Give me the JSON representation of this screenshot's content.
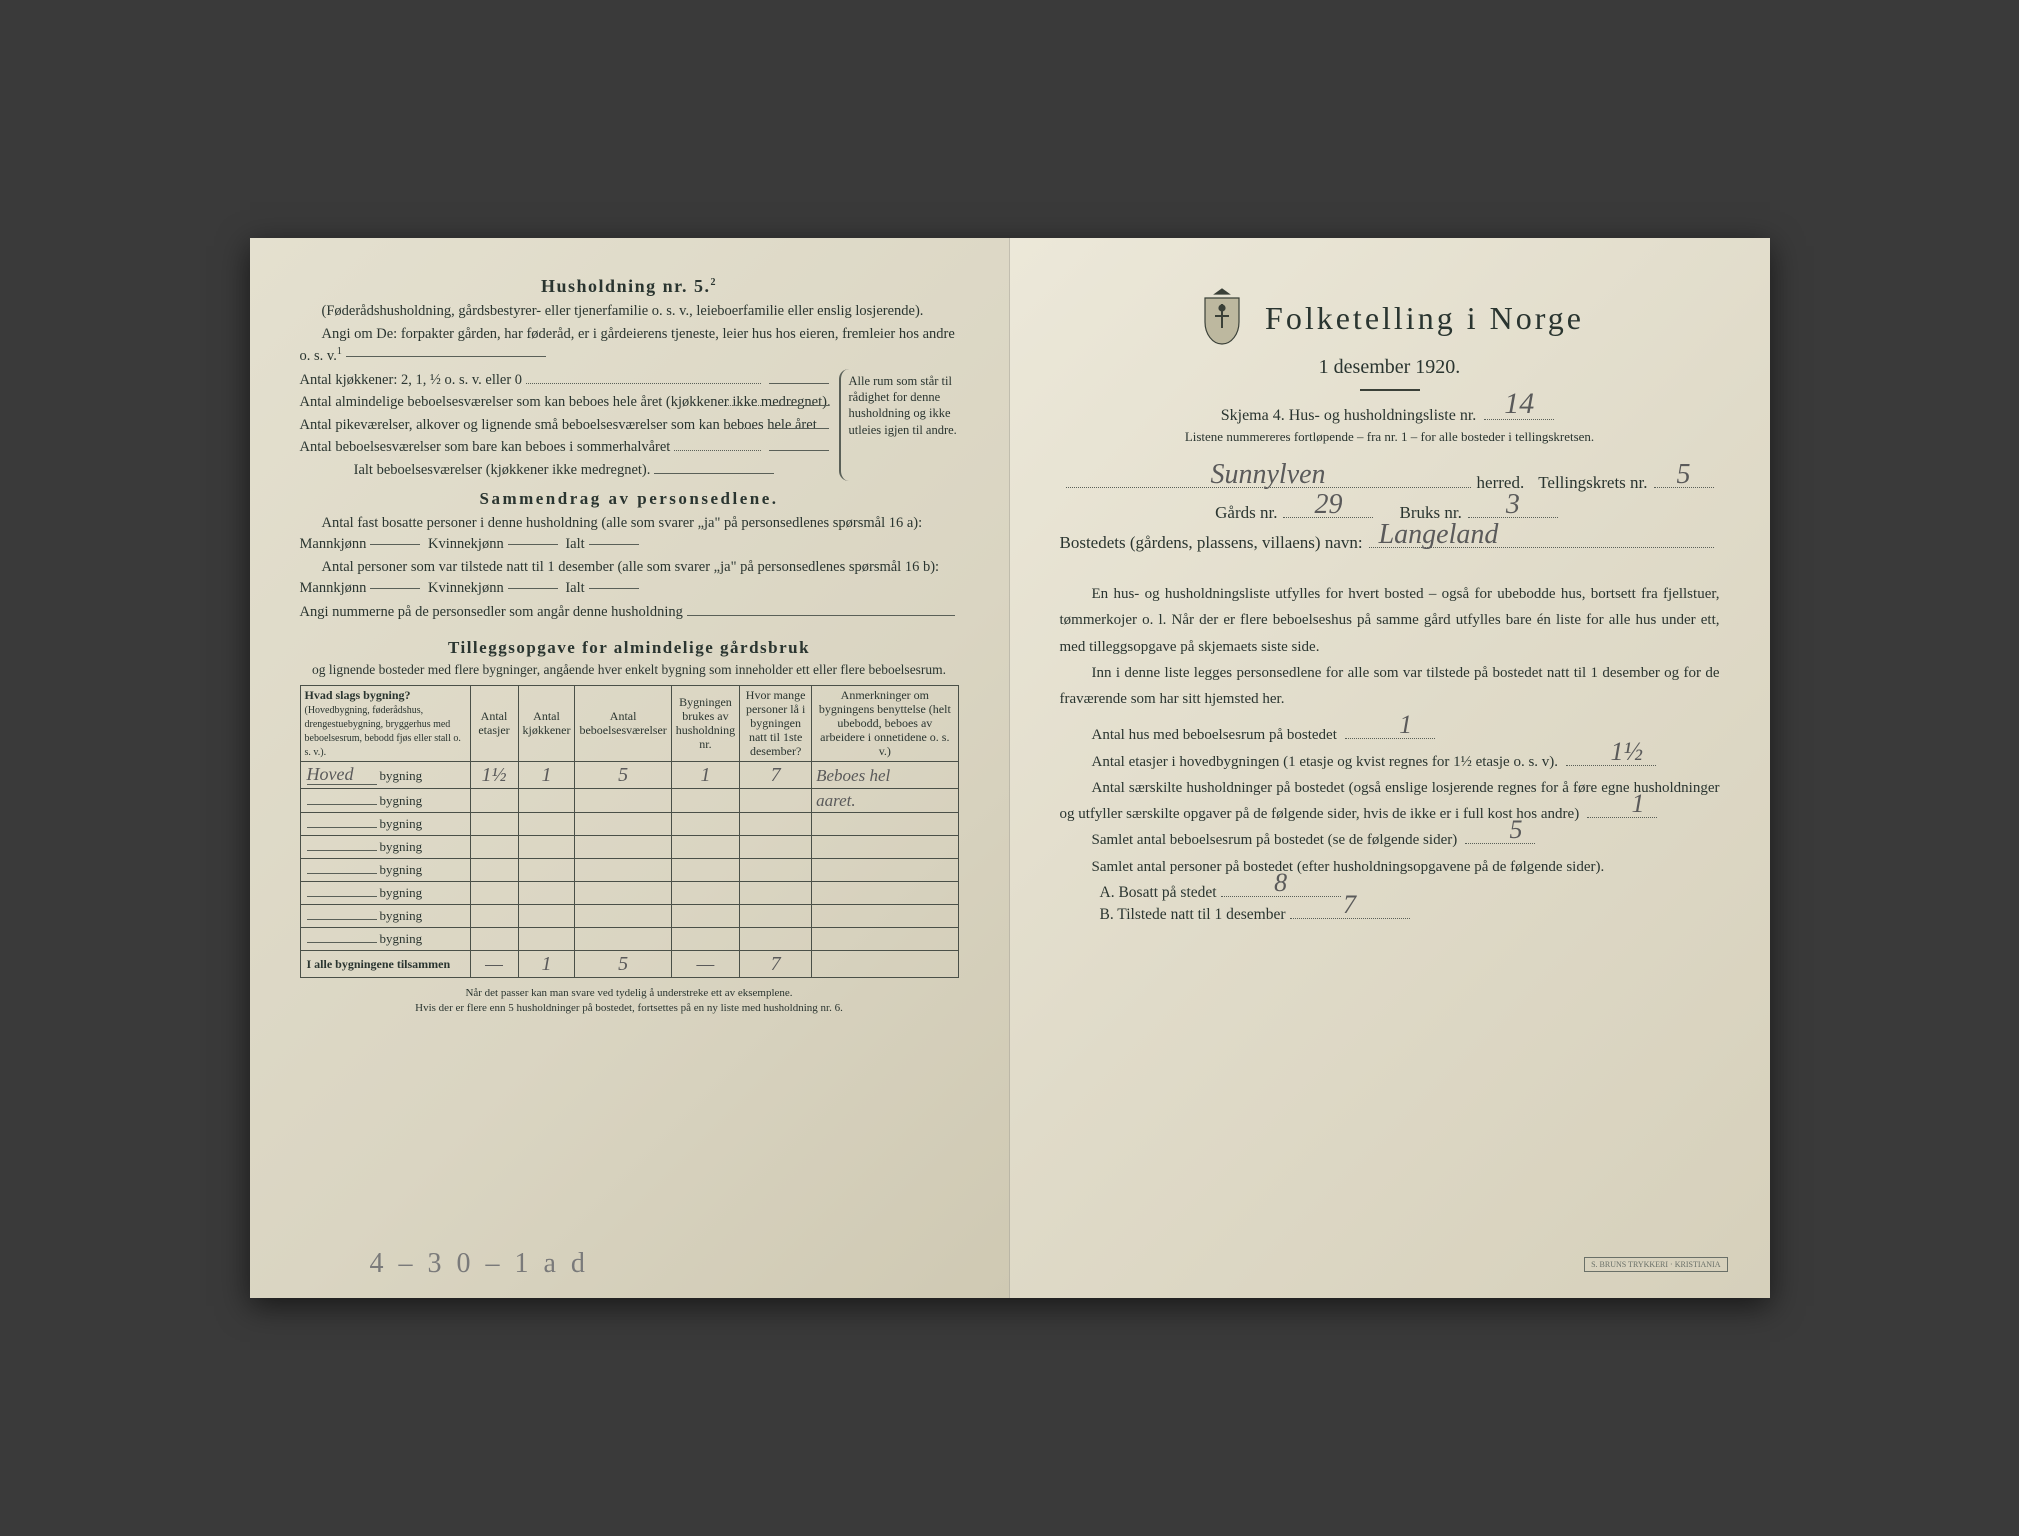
{
  "left": {
    "heading": "Husholdning nr. 5.",
    "heading_sup": "2",
    "sub1": "(Føderådshusholdning, gårdsbestyrer- eller tjenerfamilie o. s. v., leieboerfamilie eller enslig losjerende).",
    "sub2": "Angi om De: forpakter gården, har føderåd, er i gårdeierens tjeneste, leier hus hos eieren, fremleier hos andre o. s. v.",
    "sub2_sup": "1",
    "kjokkener": "Antal kjøkkener: 2, 1, ½ o. s. v. eller 0",
    "bebo1": "Antal almindelige beboelsesværelser som kan beboes hele året (kjøkkener ikke medregnet).",
    "bebo2": "Antal pikeværelser, alkover og lignende små beboelsesværelser som kan beboes hele året",
    "bebo3": "Antal beboelsesværelser som bare kan beboes i sommerhalvåret",
    "ialt": "Ialt beboelsesværelser  (kjøkkener ikke medregnet).",
    "brace_text": "Alle rum som står til rådighet for denne husholdning og ikke utleies igjen til andre.",
    "sammendrag_title": "Sammendrag av personsedlene.",
    "sam1": "Antal fast bosatte personer i denne husholdning (alle som svarer „ja\" på personsedlenes spørsmål 16 a): Mannkjønn",
    "sam_kv": "Kvinnekjønn",
    "sam_ialt": "Ialt",
    "sam2": "Antal personer som var tilstede natt til 1 desember (alle som svarer „ja\" på personsedlenes spørsmål 16 b): Mannkjønn",
    "angi": "Angi nummerne på de personsedler som angår denne husholdning",
    "tillegg_title": "Tilleggsopgave for almindelige gårdsbruk",
    "tillegg_sub": "og lignende bosteder med flere bygninger, angående hver enkelt bygning som inneholder ett eller flere beboelsesrum.",
    "table": {
      "headers": {
        "h1": "Hvad slags bygning?",
        "h1_sub": "(Hovedbygning, føderådshus, drengestue­bygning, bryggerhus med beboelsesrum, bebodd fjøs eller stall o. s. v.).",
        "h2": "Antal etasjer",
        "h3": "Antal kjøkkener",
        "h4": "Antal beboelsesværelser",
        "h5": "Bygningen brukes av husholdning nr.",
        "h6": "Hvor mange personer lå i bygningen natt til 1ste desember?",
        "h7": "Anmerkninger om bygningens benyttelse (helt ubebodd, beboes av arbeidere i onnetidene o. s. v.)"
      },
      "bygning_word": "bygning",
      "rows": [
        {
          "name": "Hoved",
          "etasjer": "1½",
          "kjokkener": "1",
          "vaer": "5",
          "hushold": "1",
          "personer": "7",
          "anm": "Beboes hel"
        },
        {
          "name": "",
          "etasjer": "",
          "kjokkener": "",
          "vaer": "",
          "hushold": "",
          "personer": "",
          "anm": "aaret."
        },
        {
          "name": "",
          "etasjer": "",
          "kjokkener": "",
          "vaer": "",
          "hushold": "",
          "personer": "",
          "anm": ""
        },
        {
          "name": "",
          "etasjer": "",
          "kjokkener": "",
          "vaer": "",
          "hushold": "",
          "personer": "",
          "anm": ""
        },
        {
          "name": "",
          "etasjer": "",
          "kjokkener": "",
          "vaer": "",
          "hushold": "",
          "personer": "",
          "anm": ""
        },
        {
          "name": "",
          "etasjer": "",
          "kjokkener": "",
          "vaer": "",
          "hushold": "",
          "personer": "",
          "anm": ""
        },
        {
          "name": "",
          "etasjer": "",
          "kjokkener": "",
          "vaer": "",
          "hushold": "",
          "personer": "",
          "anm": ""
        },
        {
          "name": "",
          "etasjer": "",
          "kjokkener": "",
          "vaer": "",
          "hushold": "",
          "personer": "",
          "anm": ""
        }
      ],
      "total_label": "I alle bygningene tilsammen",
      "total": {
        "etasjer": "—",
        "kjokkener": "1",
        "vaer": "5",
        "hushold": "—",
        "personer": "7",
        "anm": ""
      }
    },
    "footnote1": "Når det passer kan man svare ved tydelig å understreke ett av eksemplene.",
    "footnote2": "Hvis der er flere enn 5 husholdninger på bostedet, fortsettes på en ny liste med husholdning nr. 6.",
    "bottom_scrawl": "4 – 3 0 – 1  a d"
  },
  "right": {
    "title": "Folketelling i Norge",
    "date": "1 desember 1920.",
    "schema": "Skjema 4.  Hus- og husholdningsliste nr.",
    "schema_val": "14",
    "listene": "Listene nummereres fortløpende – fra nr. 1 – for alle bosteder i tellingskretsen.",
    "herred_val": "Sunnylven",
    "herred_lbl": "herred.",
    "krets_lbl": "Tellingskrets nr.",
    "krets_val": "5",
    "gards_lbl": "Gårds nr.",
    "gards_val": "29",
    "bruks_lbl": "Bruks nr.",
    "bruks_val": "3",
    "bosted_lbl": "Bostedets (gårdens, plassens, villaens) navn:",
    "bosted_val": "Langeland",
    "para1": "En hus- og husholdningsliste utfylles for hvert bosted – også for ubebodde hus, bortsett fra fjellstuer, tømmerkojer o. l.  Når der er flere beboelseshus på samme gård utfylles bare én liste for alle hus under ett, med tilleggsopgave på skjemaets siste side.",
    "para2": "Inn i denne liste legges personsedlene for alle som var tilstede på bostedet natt til 1 desember og for de fraværende som har sitt hjemsted her.",
    "q1": "Antal hus med beboelsesrum på bostedet",
    "q1_val": "1",
    "q2a": "Antal etasjer i hovedbygningen (1 etasje og kvist regnes for 1½ etasje o. s. v).",
    "q2_val": "1½",
    "q3": "Antal særskilte husholdninger på bostedet (også enslige losjerende regnes for å føre egne husholdninger og utfyller særskilte opgaver på de følgende sider, hvis de ikke er i full kost hos andre)",
    "q3_val": "1",
    "q4": "Samlet antal beboelsesrum på bostedet (se de følgende sider)",
    "q4_val": "5",
    "q5": "Samlet antal personer på bostedet (efter husholdningsopgavene på de følgende sider).",
    "qA": "A.  Bosatt på stedet",
    "qA_val": "8",
    "qB": "B.  Tilstede natt til 1 desember",
    "qB_val": "7",
    "stamp": "S. BRUNS TRYKKERI · KRISTIANIA"
  },
  "colors": {
    "text": "#2a3530",
    "handwriting": "#5a5a5a",
    "rule": "#5a6058"
  }
}
